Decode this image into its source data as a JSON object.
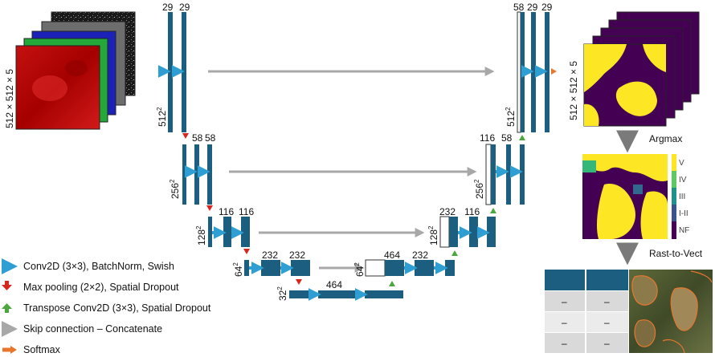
{
  "input": {
    "size_label": "512 × 512 × 5"
  },
  "output": {
    "size_label": "512 × 512 × 5"
  },
  "encoder": {
    "l1": {
      "ch_a": "29",
      "ch_b": "29",
      "res": "512",
      "exp": "2"
    },
    "l2": {
      "ch_a": "58",
      "ch_b": "58",
      "res": "256",
      "exp": "2"
    },
    "l3": {
      "ch_a": "116",
      "ch_b": "116",
      "res": "128",
      "exp": "2"
    },
    "l4": {
      "ch_a": "232",
      "ch_b": "232",
      "res": "64",
      "exp": "2"
    },
    "bottleneck": {
      "ch": "464",
      "res": "32",
      "exp": "2"
    }
  },
  "decoder": {
    "l4": {
      "ch_a": "464",
      "ch_b": "232",
      "res": "64",
      "exp": "2"
    },
    "l3": {
      "ch_a": "232",
      "ch_b": "116",
      "res": "128",
      "exp": "2"
    },
    "l2": {
      "ch_a": "116",
      "ch_b": "58",
      "res": "256",
      "exp": "2"
    },
    "l1": {
      "ch_a": "58",
      "ch_b": "29",
      "ch_c": "29",
      "res": "512",
      "exp": "2"
    }
  },
  "post": {
    "argmax_label": "Argmax",
    "rast_label": "Rast-to-Vect",
    "classes": [
      "V",
      "IV",
      "III",
      "I-II",
      "NF"
    ],
    "table_cell": "–"
  },
  "legend": [
    {
      "label": "Conv2D (3×3), BatchNorm, Swish",
      "color": "#2f9fd3"
    },
    {
      "label": "Max pooling (2×2), Spatial Dropout",
      "color": "#d9251d"
    },
    {
      "label": "Transpose Conv2D (3×3), Spatial Dropout",
      "color": "#4aa73c"
    },
    {
      "label": "Skip connection – Concatenate",
      "color": "#a8a8a8"
    },
    {
      "label": "Softmax",
      "color": "#e8772e"
    }
  ],
  "colors": {
    "block": "#1b5e80",
    "conv": "#2f9fd3",
    "pool": "#d9251d",
    "upconv": "#4aa73c",
    "skip": "#a8a8a8",
    "softmax": "#e8772e",
    "viridis_purple": "#440154",
    "viridis_yellow": "#fde725"
  }
}
